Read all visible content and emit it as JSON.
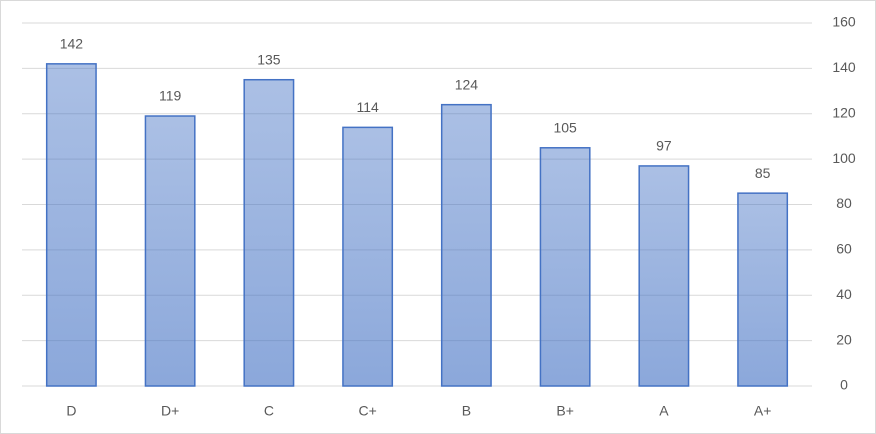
{
  "chart_data": {
    "type": "bar",
    "categories": [
      "D",
      "D+",
      "C",
      "C+",
      "B",
      "B+",
      "A",
      "A+"
    ],
    "values": [
      142,
      119,
      135,
      114,
      124,
      105,
      97,
      85
    ],
    "color": "#4472c4",
    "ylim": [
      0,
      160
    ],
    "yticks": [
      0,
      20,
      40,
      60,
      80,
      100,
      120,
      140,
      160
    ],
    "y_axis_side": "right",
    "grid": true,
    "data_labels": true
  }
}
